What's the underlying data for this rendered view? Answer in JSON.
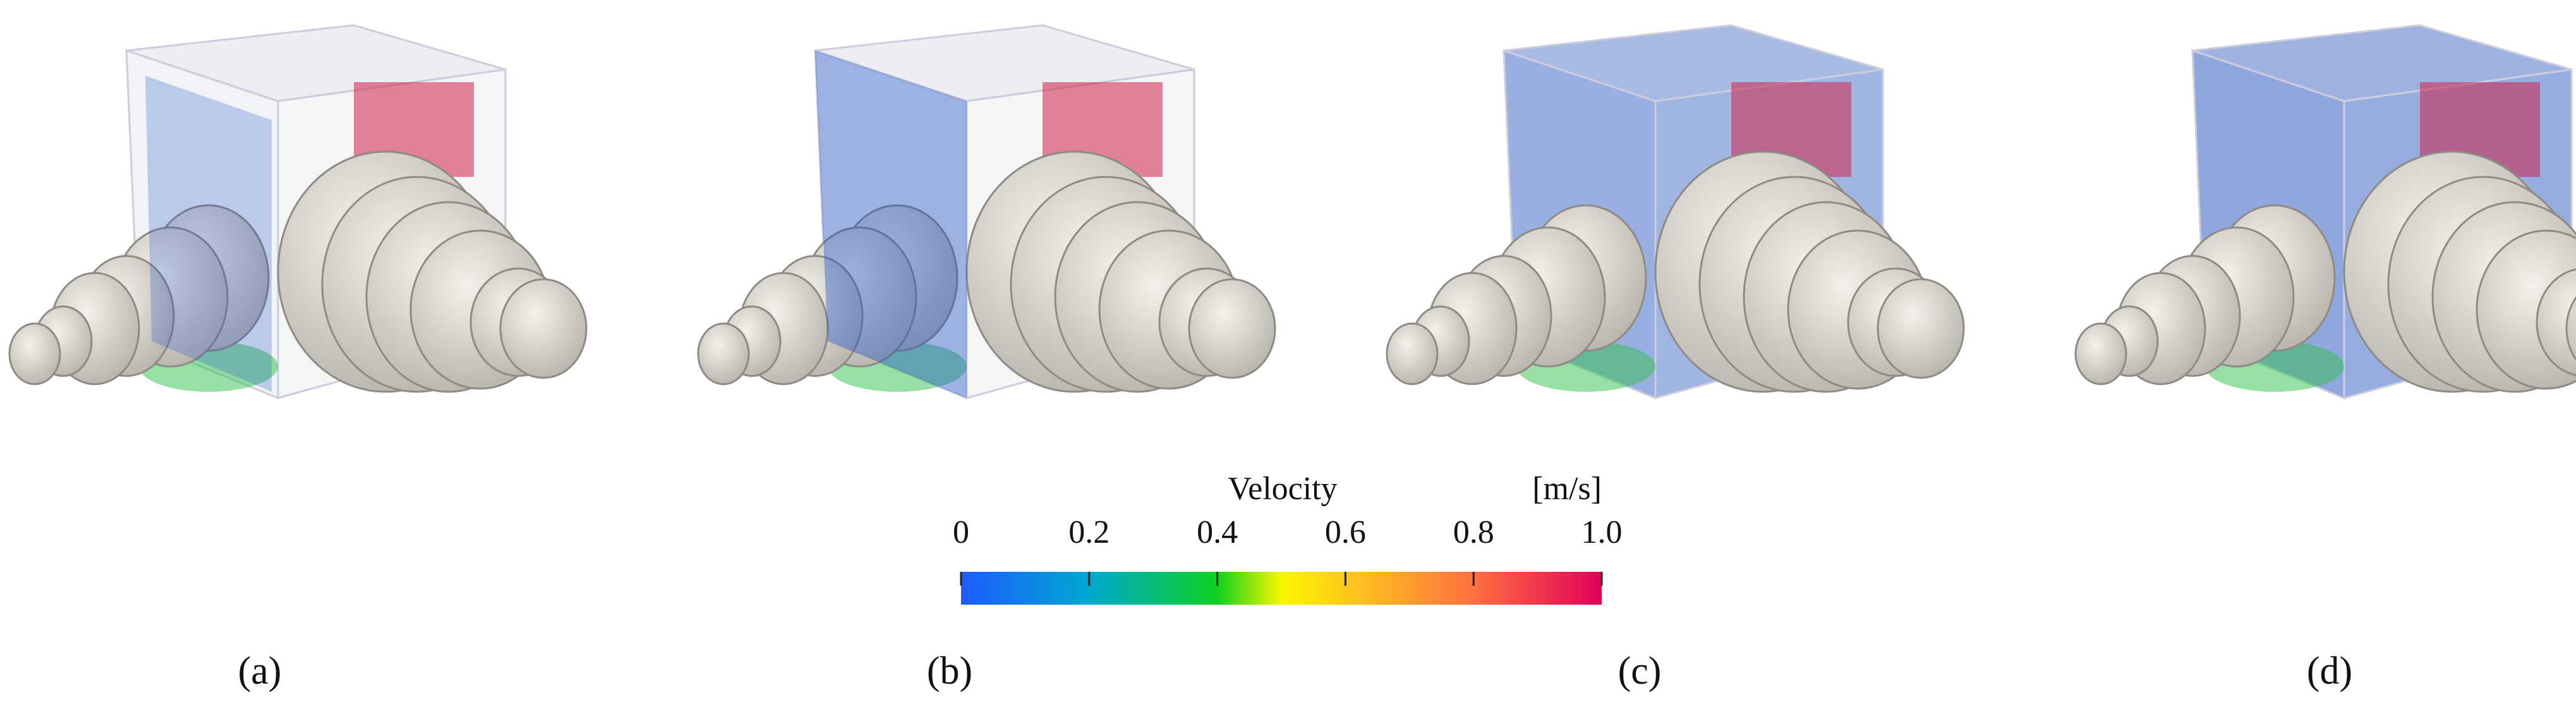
{
  "panels": [
    {
      "label": "(a)"
    },
    {
      "label": "(b)"
    },
    {
      "label": "(c)"
    },
    {
      "label": "(d)"
    }
  ],
  "colorbar": {
    "title": "Velocity",
    "unit": "[m/s]",
    "range": [
      0,
      1
    ],
    "ticks": [
      0,
      0.2,
      0.4,
      0.6,
      0.8,
      {
        "value": 1,
        "label": "1.0"
      }
    ]
  }
}
